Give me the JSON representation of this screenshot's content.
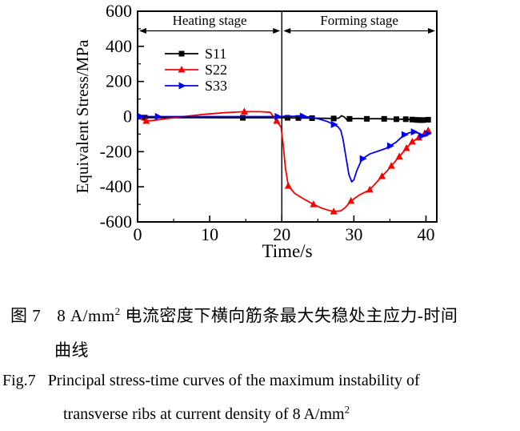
{
  "figure": {
    "caption_zh": {
      "fig_label": "图 7",
      "body_before_sup": "8 A/mm",
      "sup": "2",
      "body_after_sup": " 电流密度下横向筋条最大失稳处主应力-时间",
      "line2": "曲线"
    },
    "caption_en": {
      "fig_label": "Fig.7",
      "line1": "Principal stress-time curves of the maximum instability of",
      "line2_before_sup": "transverse ribs at current density of 8 A/mm",
      "sup": "2"
    }
  },
  "chart_data": {
    "type": "line",
    "title": "",
    "xlabel": "Time/s",
    "ylabel": "Equivalent Stress/MPa",
    "xlim": [
      0,
      41.5
    ],
    "ylim": [
      -600,
      600
    ],
    "x_ticks": [
      0,
      10,
      20,
      30,
      40
    ],
    "x_minor_ticks": [
      5,
      15,
      25,
      35
    ],
    "y_ticks": [
      600,
      400,
      200,
      0,
      -200,
      -400,
      -600
    ],
    "y_minor_ticks": [
      500,
      300,
      100,
      -100,
      -300,
      -500
    ],
    "grid": false,
    "legend_position": "upper-left-inside",
    "stage_divider_x": 20,
    "stages": [
      {
        "label": "Heating stage",
        "from": 0,
        "to": 20
      },
      {
        "label": "Forming stage",
        "from": 20,
        "to": 41.5
      }
    ],
    "series": [
      {
        "name": "S11",
        "color": "#000000",
        "marker": "square",
        "points": [
          [
            0,
            -3
          ],
          [
            1,
            -6
          ],
          [
            4,
            -6
          ],
          [
            8,
            -6
          ],
          [
            12,
            -7
          ],
          [
            14.6,
            -7
          ],
          [
            17,
            -7
          ],
          [
            19,
            -7
          ],
          [
            20.8,
            -7
          ],
          [
            22.3,
            -8
          ],
          [
            24.2,
            -9
          ],
          [
            26,
            -10
          ],
          [
            27.2,
            -11
          ],
          [
            27.9,
            -9
          ],
          [
            28.3,
            5
          ],
          [
            28.7,
            -3
          ],
          [
            29,
            -17
          ],
          [
            29.4,
            -13
          ],
          [
            30.5,
            -11
          ],
          [
            31.8,
            -13
          ],
          [
            33,
            -12
          ],
          [
            34.2,
            -13
          ],
          [
            35.9,
            -15
          ],
          [
            37.2,
            -15
          ],
          [
            38.1,
            -17
          ],
          [
            38.7,
            -19
          ],
          [
            39.2,
            -20
          ],
          [
            39.6,
            -20
          ],
          [
            40.3,
            -18
          ]
        ],
        "marker_points": [
          [
            1,
            -6
          ],
          [
            14.6,
            -7
          ],
          [
            20.8,
            -7
          ],
          [
            22.3,
            -8
          ],
          [
            24.2,
            -9
          ],
          [
            27.2,
            -11
          ],
          [
            29.4,
            -13
          ],
          [
            31.8,
            -13
          ],
          [
            34.2,
            -13
          ],
          [
            35.9,
            -15
          ],
          [
            37.2,
            -15
          ],
          [
            38.1,
            -17
          ],
          [
            38.7,
            -19
          ],
          [
            39.2,
            -20
          ],
          [
            39.6,
            -20
          ],
          [
            40.3,
            -18
          ]
        ]
      },
      {
        "name": "S22",
        "color": "#fb0000",
        "marker": "triangle-up",
        "points": [
          [
            0,
            -5
          ],
          [
            0.6,
            -18
          ],
          [
            1.2,
            -25
          ],
          [
            2.2,
            -22
          ],
          [
            4,
            -12
          ],
          [
            6,
            -2
          ],
          [
            9,
            12
          ],
          [
            12,
            22
          ],
          [
            14.8,
            28
          ],
          [
            17,
            28
          ],
          [
            18.4,
            24
          ],
          [
            19.3,
            -25
          ],
          [
            19.9,
            -60
          ],
          [
            20.2,
            -160
          ],
          [
            20.5,
            -290
          ],
          [
            20.9,
            -395
          ],
          [
            21.8,
            -438
          ],
          [
            23,
            -468
          ],
          [
            24.4,
            -500
          ],
          [
            25.5,
            -521
          ],
          [
            26.4,
            -533
          ],
          [
            27.2,
            -541
          ],
          [
            28.2,
            -537
          ],
          [
            28.8,
            -519
          ],
          [
            29.6,
            -481
          ],
          [
            30.7,
            -448
          ],
          [
            32.2,
            -417
          ],
          [
            33.2,
            -372
          ],
          [
            33.9,
            -340
          ],
          [
            34.6,
            -310
          ],
          [
            35.2,
            -281
          ],
          [
            36.3,
            -228
          ],
          [
            37.3,
            -180
          ],
          [
            38.1,
            -143
          ],
          [
            39,
            -120
          ],
          [
            39.8,
            -97
          ],
          [
            40.3,
            -80
          ]
        ],
        "marker_points": [
          [
            1.2,
            -25
          ],
          [
            14.8,
            28
          ],
          [
            19.3,
            -25
          ],
          [
            20.9,
            -395
          ],
          [
            24.4,
            -500
          ],
          [
            27.2,
            -541
          ],
          [
            29.6,
            -481
          ],
          [
            32.2,
            -417
          ],
          [
            33.9,
            -340
          ],
          [
            35.2,
            -281
          ],
          [
            36.3,
            -228
          ],
          [
            37.3,
            -180
          ],
          [
            38.1,
            -143
          ],
          [
            39,
            -120
          ],
          [
            39.8,
            -97
          ],
          [
            40.3,
            -80
          ]
        ]
      },
      {
        "name": "S33",
        "color": "#0000f8",
        "marker": "triangle-right",
        "points": [
          [
            0,
            0
          ],
          [
            0.4,
            0
          ],
          [
            2.8,
            0
          ],
          [
            8,
            0
          ],
          [
            14,
            0
          ],
          [
            19.4,
            0
          ],
          [
            20.5,
            2
          ],
          [
            22.9,
            2
          ],
          [
            24,
            -4
          ],
          [
            25.2,
            -14
          ],
          [
            26.3,
            -28
          ],
          [
            27.2,
            -45
          ],
          [
            27.8,
            -58
          ],
          [
            28.2,
            -80
          ],
          [
            28.5,
            -130
          ],
          [
            28.9,
            -230
          ],
          [
            29.3,
            -330
          ],
          [
            29.7,
            -372
          ],
          [
            30,
            -360
          ],
          [
            30.4,
            -308
          ],
          [
            30.9,
            -262
          ],
          [
            31.2,
            -240
          ],
          [
            32.2,
            -213
          ],
          [
            33.4,
            -196
          ],
          [
            34.4,
            -182
          ],
          [
            35,
            -167
          ],
          [
            35.8,
            -148
          ],
          [
            36.5,
            -122
          ],
          [
            37,
            -103
          ],
          [
            37.6,
            -93
          ],
          [
            38.3,
            -87
          ],
          [
            38.9,
            -94
          ],
          [
            39.4,
            -110
          ],
          [
            39.7,
            -106
          ],
          [
            40.2,
            -97
          ]
        ],
        "marker_points": [
          [
            0.4,
            0
          ],
          [
            2.8,
            0
          ],
          [
            19.4,
            0
          ],
          [
            22.9,
            2
          ],
          [
            27.2,
            -45
          ],
          [
            31.2,
            -240
          ],
          [
            35,
            -167
          ],
          [
            37,
            -103
          ],
          [
            38.3,
            -87
          ],
          [
            39.4,
            -110
          ],
          [
            40.2,
            -97
          ]
        ]
      }
    ]
  }
}
